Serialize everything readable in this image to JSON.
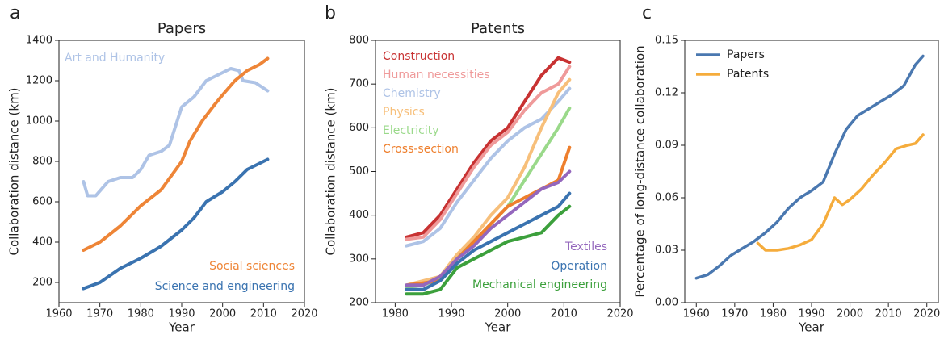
{
  "chart_data": [
    {
      "type": "line",
      "panel": "a",
      "title": "Papers",
      "xlabel": "Year",
      "ylabel": "Collaboration distance (km)",
      "xlim": [
        1960,
        2020
      ],
      "xticks": [
        1960,
        1970,
        1980,
        1990,
        2000,
        2010,
        2020
      ],
      "ylim": [
        100,
        1400
      ],
      "yticks": [
        200,
        400,
        600,
        800,
        1000,
        1200,
        1400
      ],
      "series": [
        {
          "name": "Art and Humanity",
          "color": "#aec3e6",
          "x": [
            1966,
            1967,
            1969,
            1972,
            1975,
            1978,
            1980,
            1982,
            1985,
            1987,
            1990,
            1993,
            1996,
            2000,
            2002,
            2004,
            2005,
            2008,
            2011
          ],
          "values": [
            700,
            630,
            630,
            700,
            720,
            720,
            760,
            830,
            850,
            880,
            1070,
            1120,
            1200,
            1240,
            1260,
            1250,
            1200,
            1190,
            1150
          ]
        },
        {
          "name": "Social sciences",
          "color": "#ee8537",
          "x": [
            1966,
            1970,
            1975,
            1980,
            1985,
            1990,
            1992,
            1995,
            1998,
            2000,
            2003,
            2006,
            2009,
            2011
          ],
          "values": [
            360,
            400,
            480,
            580,
            660,
            800,
            900,
            1000,
            1080,
            1130,
            1200,
            1250,
            1280,
            1310
          ]
        },
        {
          "name": "Science and engineering",
          "color": "#3a73b0",
          "x": [
            1966,
            1970,
            1975,
            1980,
            1985,
            1990,
            1993,
            1996,
            2000,
            2003,
            2006,
            2009,
            2011
          ],
          "values": [
            170,
            200,
            270,
            320,
            380,
            460,
            520,
            600,
            650,
            700,
            760,
            790,
            810
          ]
        }
      ]
    },
    {
      "type": "line",
      "panel": "b",
      "title": "Patents",
      "xlabel": "Year",
      "ylabel": "Collaboration distance (km)",
      "xlim": [
        1976.5,
        2020
      ],
      "xticks": [
        1980,
        1990,
        2000,
        2010,
        2020
      ],
      "ylim": [
        200,
        800
      ],
      "yticks": [
        200,
        300,
        400,
        500,
        600,
        700,
        800
      ],
      "series": [
        {
          "name": "Construction",
          "color": "#c83232",
          "x": [
            1982,
            1985,
            1988,
            1991,
            1994,
            1997,
            2000,
            2003,
            2006,
            2009,
            2011
          ],
          "values": [
            350,
            360,
            400,
            460,
            520,
            570,
            600,
            660,
            720,
            760,
            750
          ]
        },
        {
          "name": "Human necessities",
          "color": "#ef9a9a",
          "x": [
            1982,
            1985,
            1988,
            1991,
            1994,
            1997,
            2000,
            2003,
            2006,
            2009,
            2011
          ],
          "values": [
            345,
            350,
            390,
            450,
            510,
            560,
            590,
            640,
            680,
            700,
            740
          ]
        },
        {
          "name": "Chemistry",
          "color": "#aec3e6",
          "x": [
            1982,
            1985,
            1988,
            1991,
            1994,
            1997,
            2000,
            2003,
            2006,
            2009,
            2011
          ],
          "values": [
            330,
            340,
            370,
            430,
            480,
            530,
            570,
            600,
            620,
            660,
            690
          ]
        },
        {
          "name": "Physics",
          "color": "#f7bf7a",
          "x": [
            1982,
            1985,
            1988,
            1991,
            1994,
            1997,
            2000,
            2003,
            2006,
            2009,
            2011
          ],
          "values": [
            240,
            250,
            260,
            310,
            350,
            400,
            440,
            510,
            600,
            680,
            710
          ]
        },
        {
          "name": "Electricity",
          "color": "#9ad98a",
          "x": [
            1982,
            1985,
            1988,
            1991,
            1994,
            1997,
            2000,
            2003,
            2006,
            2009,
            2011
          ],
          "values": [
            235,
            240,
            255,
            300,
            340,
            380,
            420,
            480,
            540,
            600,
            645
          ]
        },
        {
          "name": "Cross-section",
          "color": "#ee7f2d",
          "x": [
            1982,
            1985,
            1988,
            1991,
            1994,
            1997,
            2000,
            2003,
            2006,
            2009,
            2011
          ],
          "values": [
            240,
            245,
            250,
            300,
            340,
            380,
            420,
            440,
            460,
            480,
            555
          ]
        },
        {
          "name": "Textiles",
          "color": "#9467bd",
          "x": [
            1982,
            1985,
            1988,
            1991,
            1994,
            1997,
            2000,
            2003,
            2006,
            2009,
            2011
          ],
          "values": [
            240,
            240,
            260,
            300,
            330,
            370,
            400,
            430,
            460,
            475,
            500
          ]
        },
        {
          "name": "Operation",
          "color": "#3a73b0",
          "x": [
            1982,
            1985,
            1988,
            1991,
            1994,
            1997,
            2000,
            2003,
            2006,
            2009,
            2011
          ],
          "values": [
            230,
            230,
            250,
            290,
            320,
            340,
            360,
            380,
            400,
            420,
            450
          ]
        },
        {
          "name": "Mechanical engineering",
          "color": "#3ca03c",
          "x": [
            1982,
            1985,
            1988,
            1991,
            1994,
            1997,
            2000,
            2003,
            2006,
            2009,
            2011
          ],
          "values": [
            220,
            220,
            230,
            280,
            300,
            320,
            340,
            350,
            360,
            400,
            420
          ]
        }
      ]
    },
    {
      "type": "line",
      "panel": "c",
      "xlabel": "Year",
      "ylabel": "Percentage of long-distance collaboration",
      "xlim": [
        1957,
        2023
      ],
      "xticks": [
        1960,
        1970,
        1980,
        1990,
        2000,
        2010,
        2020
      ],
      "ylim": [
        0,
        0.15
      ],
      "yticks": [
        {
          "value": 0,
          "label": "0.00"
        },
        {
          "value": 0.03,
          "label": "0.03"
        },
        {
          "value": 0.06,
          "label": "0.06"
        },
        {
          "value": 0.09,
          "label": "0.09"
        },
        {
          "value": 0.12,
          "label": "0.12"
        },
        {
          "value": 0.15,
          "label": "0.15"
        }
      ],
      "legend": "upper left",
      "series": [
        {
          "name": "Papers",
          "color": "#4a78b0",
          "x": [
            1960,
            1963,
            1966,
            1969,
            1972,
            1975,
            1978,
            1981,
            1984,
            1987,
            1990,
            1993,
            1996,
            1999,
            2002,
            2005,
            2008,
            2011,
            2014,
            2017,
            2019
          ],
          "values": [
            0.014,
            0.016,
            0.021,
            0.027,
            0.031,
            0.035,
            0.04,
            0.046,
            0.054,
            0.06,
            0.064,
            0.069,
            0.085,
            0.099,
            0.107,
            0.111,
            0.115,
            0.119,
            0.124,
            0.136,
            0.141
          ]
        },
        {
          "name": "Patents",
          "color": "#f5ac3c",
          "x": [
            1976,
            1978,
            1981,
            1984,
            1987,
            1990,
            1993,
            1996,
            1998,
            2000,
            2003,
            2006,
            2009,
            2012,
            2015,
            2017,
            2019
          ],
          "values": [
            0.034,
            0.03,
            0.03,
            0.031,
            0.033,
            0.036,
            0.045,
            0.06,
            0.056,
            0.059,
            0.065,
            0.073,
            0.08,
            0.088,
            0.09,
            0.091,
            0.096
          ]
        }
      ]
    }
  ]
}
